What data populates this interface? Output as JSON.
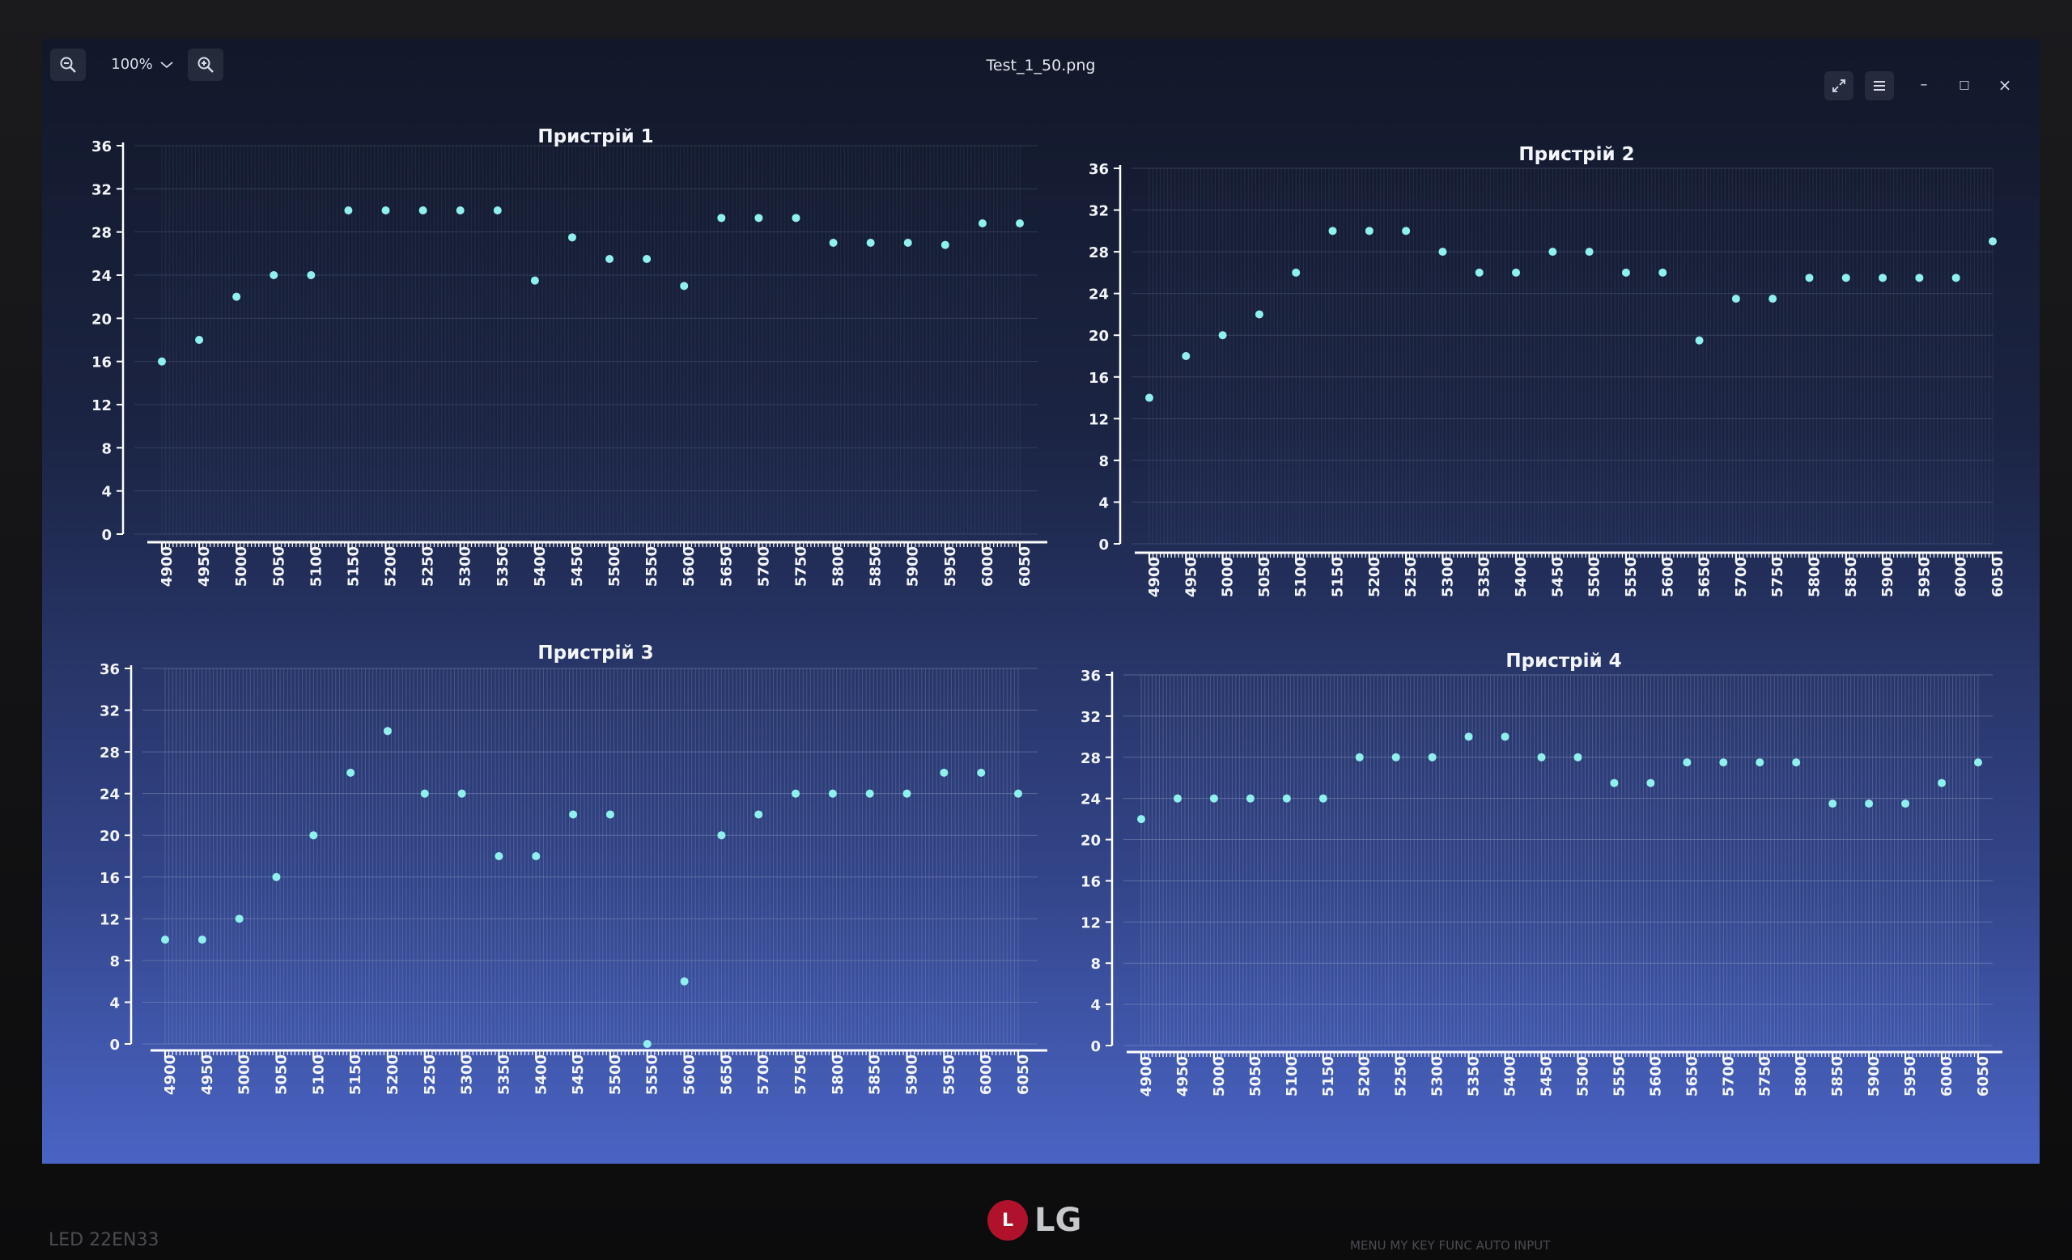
{
  "viewer": {
    "title": "Test_1_50.png",
    "zoom": "100%",
    "zoom_out_icon": "zoom-out-icon",
    "zoom_in_icon": "zoom-in-icon",
    "zoom_dropdown_icon": "chevron-down-icon",
    "expand_icon": "expand-icon",
    "menu_icon": "hamburger-menu-icon",
    "minimize_glyph": "–",
    "maximize_glyph": "□",
    "close_glyph": "×"
  },
  "monitor": {
    "brand": "LG",
    "logo_mark": "L",
    "model": "LED 22EN33",
    "buttons": "MENU  MY KEY  FUNC  AUTO  INPUT"
  },
  "colors": {
    "point": "#8ff0ee",
    "grid": "#9aa8c8",
    "axis": "#ffffff"
  },
  "chart_data": [
    {
      "type": "scatter",
      "title": "Пристрій 1",
      "x": [
        4900,
        4950,
        5000,
        5050,
        5100,
        5150,
        5200,
        5250,
        5300,
        5350,
        5400,
        5450,
        5500,
        5550,
        5600,
        5650,
        5700,
        5750,
        5800,
        5850,
        5900,
        5950,
        6000,
        6050
      ],
      "y": [
        16,
        18,
        22,
        24,
        24,
        30,
        30,
        30,
        30,
        30,
        23.5,
        27.5,
        25.5,
        25.5,
        23,
        29.3,
        29.3,
        29.3,
        27,
        27,
        27,
        26.8,
        28.8,
        28.8
      ],
      "ylim": [
        0,
        36
      ],
      "yticks": [
        0,
        4,
        8,
        12,
        16,
        20,
        24,
        28,
        32,
        36
      ],
      "xticks": [
        4900,
        4950,
        5000,
        5050,
        5100,
        5150,
        5200,
        5250,
        5300,
        5350,
        5400,
        5450,
        5500,
        5550,
        5600,
        5650,
        5700,
        5750,
        5800,
        5850,
        5900,
        5950,
        6000,
        6050
      ],
      "grid": true
    },
    {
      "type": "scatter",
      "title": "Пристрій 2",
      "x": [
        4900,
        4950,
        5000,
        5050,
        5100,
        5150,
        5200,
        5250,
        5300,
        5350,
        5400,
        5450,
        5500,
        5550,
        5600,
        5650,
        5700,
        5750,
        5800,
        5850,
        5900,
        5950,
        6000,
        6050
      ],
      "y": [
        14,
        18,
        20,
        22,
        26,
        30,
        30,
        30,
        28,
        26,
        26,
        28,
        28,
        26,
        26,
        19.5,
        23.5,
        23.5,
        25.5,
        25.5,
        25.5,
        25.5,
        25.5,
        29
      ],
      "ylim": [
        0,
        36
      ],
      "yticks": [
        0,
        4,
        8,
        12,
        16,
        20,
        24,
        28,
        32,
        36
      ],
      "xticks": [
        4900,
        4950,
        5000,
        5050,
        5100,
        5150,
        5200,
        5250,
        5300,
        5350,
        5400,
        5450,
        5500,
        5550,
        5600,
        5650,
        5700,
        5750,
        5800,
        5850,
        5900,
        5950,
        6000,
        6050
      ],
      "grid": true
    },
    {
      "type": "scatter",
      "title": "Пристрій 3",
      "x": [
        4900,
        4950,
        5000,
        5050,
        5100,
        5150,
        5200,
        5250,
        5300,
        5350,
        5400,
        5450,
        5500,
        5550,
        5600,
        5650,
        5700,
        5750,
        5800,
        5850,
        5900,
        5950,
        6000,
        6050
      ],
      "y": [
        10,
        10,
        12,
        16,
        20,
        26,
        30,
        24,
        24,
        18,
        18,
        22,
        22,
        0,
        6,
        20,
        22,
        24,
        24,
        24,
        24,
        26,
        26,
        24
      ],
      "ylim": [
        0,
        36
      ],
      "yticks": [
        0,
        4,
        8,
        12,
        16,
        20,
        24,
        28,
        32,
        36
      ],
      "xticks": [
        4900,
        4950,
        5000,
        5050,
        5100,
        5150,
        5200,
        5250,
        5300,
        5350,
        5400,
        5450,
        5500,
        5550,
        5600,
        5650,
        5700,
        5750,
        5800,
        5850,
        5900,
        5950,
        6000,
        6050
      ],
      "grid": true
    },
    {
      "type": "scatter",
      "title": "Пристрій 4",
      "x": [
        4900,
        4950,
        5000,
        5050,
        5100,
        5150,
        5200,
        5250,
        5300,
        5350,
        5400,
        5450,
        5500,
        5550,
        5600,
        5650,
        5700,
        5750,
        5800,
        5850,
        5900,
        5950,
        6000,
        6050
      ],
      "y": [
        22,
        24,
        24,
        24,
        24,
        24,
        28,
        28,
        28,
        30,
        30,
        28,
        28,
        25.5,
        25.5,
        27.5,
        27.5,
        27.5,
        27.5,
        23.5,
        23.5,
        23.5,
        25.5,
        27.5
      ],
      "ylim": [
        0,
        36
      ],
      "yticks": [
        0,
        4,
        8,
        12,
        16,
        20,
        24,
        28,
        32,
        36
      ],
      "xticks": [
        4900,
        4950,
        5000,
        5050,
        5100,
        5150,
        5200,
        5250,
        5300,
        5350,
        5400,
        5450,
        5500,
        5550,
        5600,
        5650,
        5700,
        5750,
        5800,
        5850,
        5900,
        5950,
        6000,
        6050
      ],
      "grid": true
    }
  ]
}
